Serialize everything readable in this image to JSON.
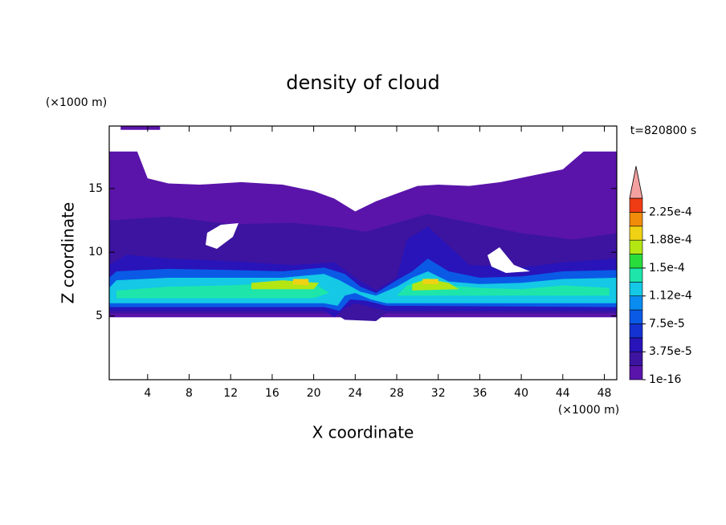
{
  "chart_data": {
    "type": "contour",
    "title": "density of cloud",
    "x_label": "X coordinate",
    "y_label": "Z coordinate",
    "x_unit": "(×1000 m)",
    "y_unit": "(×1000 m)",
    "time_label": "t=820800 s",
    "xlim": [
      0.3,
      49.2
    ],
    "ylim": [
      0,
      19.9
    ],
    "xticks": [
      4,
      8,
      12,
      16,
      20,
      24,
      28,
      32,
      36,
      40,
      44,
      48
    ],
    "yticks": [
      5,
      10,
      15
    ],
    "colorbar": {
      "levels": [
        1e-16,
        1.875e-05,
        3.75e-05,
        5.625e-05,
        7.5e-05,
        9.375e-05,
        0.0001125,
        0.00013125,
        0.00015,
        0.00016875,
        0.0001875,
        0.00020625,
        0.000225,
        0.00024375
      ],
      "colors": [
        "#5a14aa",
        "#3c14a0",
        "#2814b9",
        "#1432d2",
        "#0a5ae6",
        "#0a8cf0",
        "#14c8e6",
        "#1ee6aa",
        "#28dc3c",
        "#b4e614",
        "#f0d214",
        "#f08c0a",
        "#f03c14"
      ],
      "extend_color": "#f5a0a0",
      "ticks": [
        {
          "value": 1e-16,
          "label": "1e-16"
        },
        {
          "value": 3.75e-05,
          "label": "3.75e-5"
        },
        {
          "value": 7.5e-05,
          "label": "7.5e-5"
        },
        {
          "value": 0.0001125,
          "label": "1.12e-4"
        },
        {
          "value": 0.00015,
          "label": "1.5e-4"
        },
        {
          "value": 0.0001875,
          "label": "1.88e-4"
        },
        {
          "value": 0.000225,
          "label": "2.25e-4"
        }
      ]
    },
    "contours": [
      {
        "level": 0,
        "points": [
          [
            0.3,
            4.9
          ],
          [
            49.2,
            4.9
          ],
          [
            49.2,
            17.9
          ],
          [
            46,
            17.9
          ],
          [
            44,
            16.5
          ],
          [
            41,
            16
          ],
          [
            38,
            15.5
          ],
          [
            35,
            15.2
          ],
          [
            32,
            15.3
          ],
          [
            30,
            15.2
          ],
          [
            28,
            14.6
          ],
          [
            26,
            14
          ],
          [
            24,
            13.2
          ],
          [
            22,
            14.2
          ],
          [
            20,
            14.8
          ],
          [
            17,
            15.3
          ],
          [
            13,
            15.5
          ],
          [
            9,
            15.3
          ],
          [
            6,
            15.4
          ],
          [
            4,
            15.8
          ],
          [
            3,
            17.9
          ],
          [
            0.3,
            17.9
          ]
        ]
      },
      {
        "level": 0,
        "points": [
          [
            1.4,
            19.6
          ],
          [
            5.2,
            19.6
          ],
          [
            5.2,
            20
          ],
          [
            1.4,
            20
          ]
        ]
      },
      {
        "level": 1,
        "points": [
          [
            0.3,
            5.2
          ],
          [
            22,
            5.2
          ],
          [
            23,
            4.7
          ],
          [
            26,
            4.6
          ],
          [
            27,
            5.2
          ],
          [
            49.2,
            5.2
          ],
          [
            49.2,
            11.5
          ],
          [
            45,
            11
          ],
          [
            40,
            11.5
          ],
          [
            34,
            12.5
          ],
          [
            31,
            13
          ],
          [
            28,
            12.3
          ],
          [
            25,
            11.6
          ],
          [
            22,
            12
          ],
          [
            18,
            12.3
          ],
          [
            12,
            12.2
          ],
          [
            6,
            12.8
          ],
          [
            0.3,
            12.5
          ]
        ]
      },
      {
        "level": 2,
        "points": [
          [
            0.3,
            5.4
          ],
          [
            21,
            5.4
          ],
          [
            22,
            4.9
          ],
          [
            23,
            5.6
          ],
          [
            24,
            6
          ],
          [
            25,
            5.8
          ],
          [
            27,
            5.4
          ],
          [
            49.2,
            5.4
          ],
          [
            49.2,
            9.5
          ],
          [
            44,
            9.2
          ],
          [
            40,
            8.8
          ],
          [
            35,
            9
          ],
          [
            33,
            10.5
          ],
          [
            31,
            12
          ],
          [
            29,
            11
          ],
          [
            28,
            8
          ],
          [
            26,
            7
          ],
          [
            24,
            8
          ],
          [
            22,
            9.2
          ],
          [
            18,
            9
          ],
          [
            12,
            9.3
          ],
          [
            6,
            9.5
          ],
          [
            2,
            9.8
          ],
          [
            0.3,
            9
          ]
        ]
      },
      {
        "level": 4,
        "points": [
          [
            0.3,
            5.7
          ],
          [
            21,
            5.7
          ],
          [
            22.5,
            5.4
          ],
          [
            23.5,
            6.3
          ],
          [
            25,
            6.2
          ],
          [
            27,
            5.8
          ],
          [
            49.2,
            5.7
          ],
          [
            49.2,
            8.6
          ],
          [
            44,
            8.5
          ],
          [
            40,
            8.1
          ],
          [
            36,
            8
          ],
          [
            33,
            8.5
          ],
          [
            31,
            9.5
          ],
          [
            29.5,
            8.5
          ],
          [
            28,
            7.8
          ],
          [
            26,
            6.8
          ],
          [
            24.5,
            7.3
          ],
          [
            23,
            8.3
          ],
          [
            21,
            8.8
          ],
          [
            17,
            8.5
          ],
          [
            12,
            8.6
          ],
          [
            6,
            8.7
          ],
          [
            1,
            8.5
          ],
          [
            0.3,
            8
          ]
        ]
      },
      {
        "level": 6,
        "points": [
          [
            0.3,
            6
          ],
          [
            21,
            6
          ],
          [
            22.3,
            5.8
          ],
          [
            23,
            6.6
          ],
          [
            24,
            6.8
          ],
          [
            25.5,
            6.3
          ],
          [
            27,
            6
          ],
          [
            49.2,
            6
          ],
          [
            49.2,
            8
          ],
          [
            44,
            7.9
          ],
          [
            40,
            7.6
          ],
          [
            36,
            7.5
          ],
          [
            33,
            7.7
          ],
          [
            31,
            8.5
          ],
          [
            29.5,
            8
          ],
          [
            28,
            7.3
          ],
          [
            26,
            6.6
          ],
          [
            24.5,
            6.9
          ],
          [
            22.5,
            7.8
          ],
          [
            21,
            8.3
          ],
          [
            17,
            8
          ],
          [
            12,
            8
          ],
          [
            6,
            8
          ],
          [
            1,
            7.8
          ],
          [
            0.3,
            7.2
          ]
        ]
      },
      {
        "level": 7,
        "points": [
          [
            1,
            6.4
          ],
          [
            20,
            6.4
          ],
          [
            21.5,
            6.8
          ],
          [
            20,
            7.6
          ],
          [
            17,
            7.6
          ],
          [
            12,
            7.4
          ],
          [
            6,
            7.3
          ],
          [
            1,
            7
          ]
        ]
      },
      {
        "level": 7,
        "points": [
          [
            28,
            6.6
          ],
          [
            48.5,
            6.6
          ],
          [
            48.5,
            7.2
          ],
          [
            44,
            7.4
          ],
          [
            40,
            7.1
          ],
          [
            36,
            7.2
          ],
          [
            33,
            7.4
          ],
          [
            31,
            8
          ],
          [
            29,
            7.4
          ]
        ]
      },
      {
        "level": 9,
        "points": [
          [
            14,
            7.1
          ],
          [
            20,
            7.1
          ],
          [
            20.5,
            7.6
          ],
          [
            17,
            7.8
          ],
          [
            14,
            7.6
          ]
        ]
      },
      {
        "level": 9,
        "points": [
          [
            29.5,
            7
          ],
          [
            34,
            7.1
          ],
          [
            33,
            7.6
          ],
          [
            31,
            7.9
          ],
          [
            29.5,
            7.5
          ]
        ]
      },
      {
        "level": 10,
        "points": [
          [
            18,
            7.5
          ],
          [
            19.5,
            7.4
          ],
          [
            19.5,
            7.9
          ],
          [
            18,
            7.9
          ]
        ]
      },
      {
        "level": 10,
        "points": [
          [
            30.5,
            7.5
          ],
          [
            32,
            7.5
          ],
          [
            32,
            7.9
          ],
          [
            30.5,
            7.9
          ]
        ]
      }
    ]
  }
}
